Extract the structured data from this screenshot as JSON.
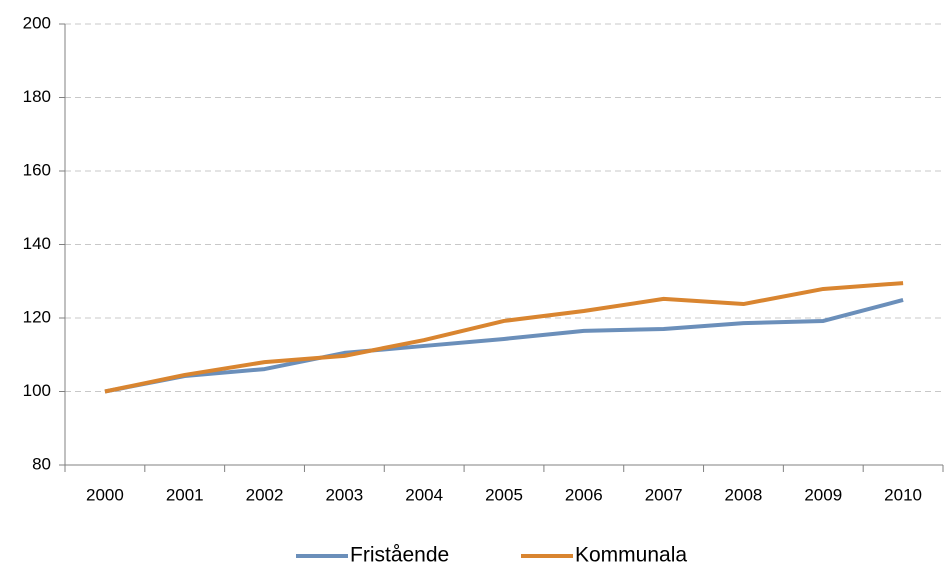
{
  "chart_data": {
    "type": "line",
    "categories": [
      "2000",
      "2001",
      "2002",
      "2003",
      "2004",
      "2005",
      "2006",
      "2007",
      "2008",
      "2009",
      "2010"
    ],
    "series": [
      {
        "name": "Fristående",
        "color": "#6b8fba",
        "values": [
          100,
          104.2,
          106.1,
          110.5,
          112.4,
          114.3,
          116.5,
          117,
          118.6,
          119.2,
          124.9
        ]
      },
      {
        "name": "Kommunala",
        "color": "#d98530",
        "values": [
          100,
          104.5,
          108,
          109.7,
          114,
          119.2,
          121.9,
          125.2,
          123.8,
          127.9,
          129.5
        ]
      }
    ],
    "ylim": [
      80,
      200
    ],
    "yticks": [
      80,
      100,
      120,
      140,
      160,
      180,
      200
    ],
    "grid": true,
    "legend": "bottom"
  }
}
